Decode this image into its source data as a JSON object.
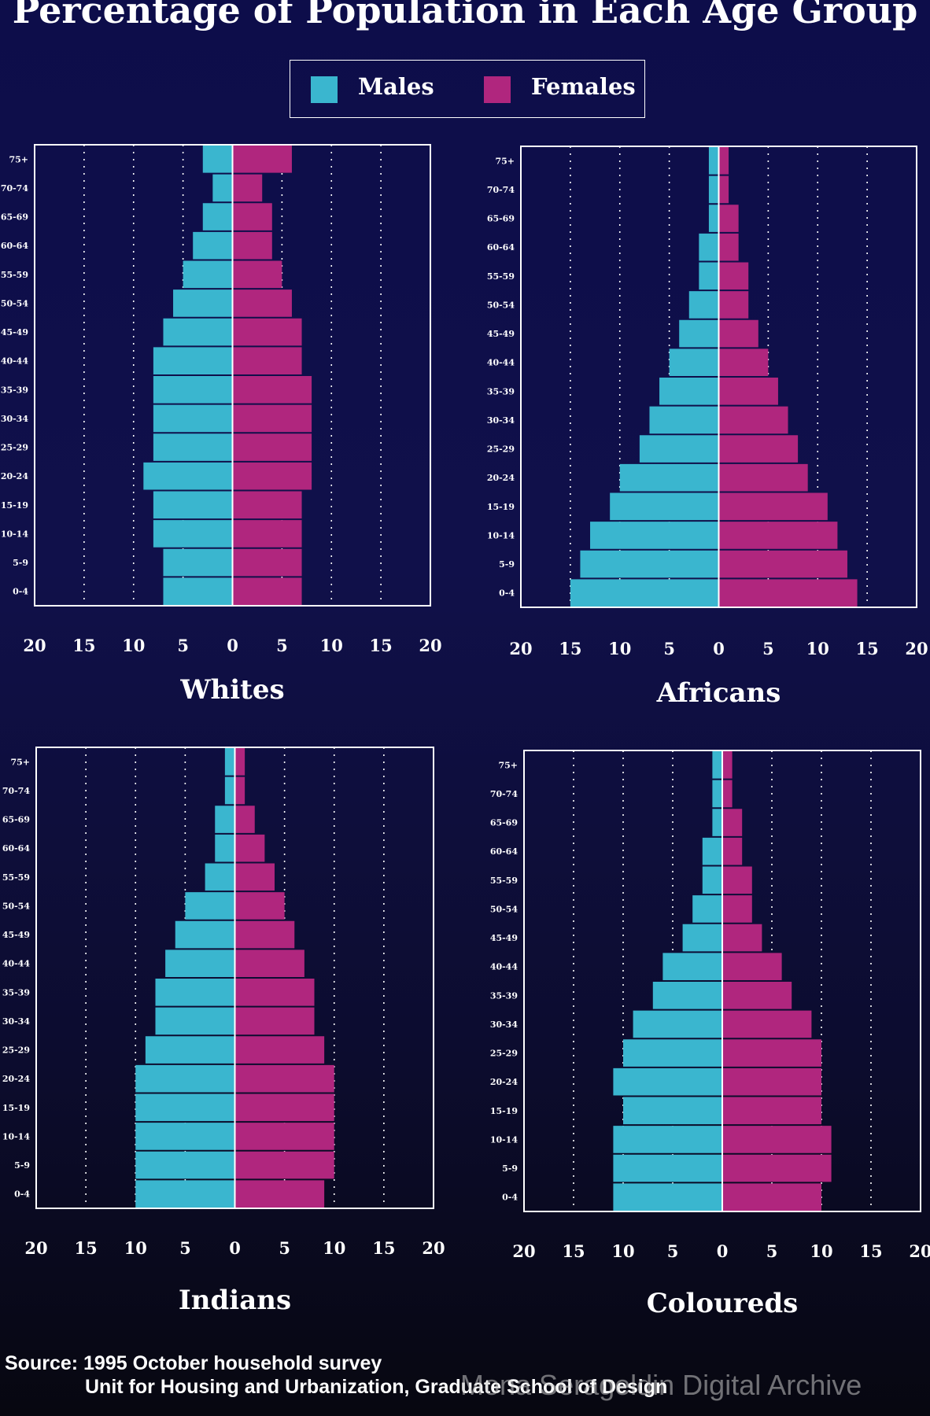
{
  "title": "Percentage of Population in Each Age Group",
  "legend": [
    {
      "label": "Males",
      "color": "#3ab6cf"
    },
    {
      "label": "Females",
      "color": "#b0267e"
    }
  ],
  "source": {
    "line1": "Source: 1995 October household survey",
    "line2": "Unit for Housing and Urbanization, Graduate School of Design"
  },
  "watermark": "Mona Serageldin Digital Archive",
  "chart_data": [
    {
      "type": "bar",
      "orientation": "population-pyramid",
      "title": "Whites",
      "categories": [
        "75+",
        "70-74",
        "65-69",
        "60-64",
        "55-59",
        "50-54",
        "45-49",
        "40-44",
        "35-39",
        "30-34",
        "25-29",
        "20-24",
        "15-19",
        "10-14",
        "5-9",
        "0-4"
      ],
      "xticks": [
        "20",
        "15",
        "10",
        "5",
        "0",
        "5",
        "10",
        "15",
        "20"
      ],
      "xlim": [
        -20,
        20
      ],
      "grid": true,
      "series": [
        {
          "name": "Males",
          "values": [
            3,
            2,
            3,
            4,
            5,
            6,
            7,
            8,
            8,
            8,
            8,
            9,
            8,
            8,
            7,
            7
          ]
        },
        {
          "name": "Females",
          "values": [
            6,
            3,
            4,
            4,
            5,
            6,
            7,
            7,
            8,
            8,
            8,
            8,
            7,
            7,
            7,
            7
          ]
        }
      ]
    },
    {
      "type": "bar",
      "orientation": "population-pyramid",
      "title": "Africans",
      "categories": [
        "75+",
        "70-74",
        "65-69",
        "60-64",
        "55-59",
        "50-54",
        "45-49",
        "40-44",
        "35-39",
        "30-34",
        "25-29",
        "20-24",
        "15-19",
        "10-14",
        "5-9",
        "0-4"
      ],
      "xticks": [
        "20",
        "15",
        "10",
        "5",
        "0",
        "5",
        "10",
        "15",
        "20"
      ],
      "xlim": [
        -20,
        20
      ],
      "grid": true,
      "series": [
        {
          "name": "Males",
          "values": [
            1,
            1,
            1,
            2,
            2,
            3,
            4,
            5,
            6,
            7,
            8,
            10,
            11,
            13,
            14,
            15
          ]
        },
        {
          "name": "Females",
          "values": [
            1,
            1,
            2,
            2,
            3,
            3,
            4,
            5,
            6,
            7,
            8,
            9,
            11,
            12,
            13,
            14
          ]
        }
      ]
    },
    {
      "type": "bar",
      "orientation": "population-pyramid",
      "title": "Indians",
      "categories": [
        "75+",
        "70-74",
        "65-69",
        "60-64",
        "55-59",
        "50-54",
        "45-49",
        "40-44",
        "35-39",
        "30-34",
        "25-29",
        "20-24",
        "15-19",
        "10-14",
        "5-9",
        "0-4"
      ],
      "xticks": [
        "20",
        "15",
        "10",
        "5",
        "0",
        "5",
        "10",
        "15",
        "20"
      ],
      "xlim": [
        -20,
        20
      ],
      "grid": true,
      "series": [
        {
          "name": "Males",
          "values": [
            1,
            1,
            2,
            2,
            3,
            5,
            6,
            7,
            8,
            8,
            9,
            10,
            10,
            10,
            10,
            10
          ]
        },
        {
          "name": "Females",
          "values": [
            1,
            1,
            2,
            3,
            4,
            5,
            6,
            7,
            8,
            8,
            9,
            10,
            10,
            10,
            10,
            9
          ]
        }
      ]
    },
    {
      "type": "bar",
      "orientation": "population-pyramid",
      "title": "Coloureds",
      "categories": [
        "75+",
        "70-74",
        "65-69",
        "60-64",
        "55-59",
        "50-54",
        "45-49",
        "40-44",
        "35-39",
        "30-34",
        "25-29",
        "20-24",
        "15-19",
        "10-14",
        "5-9",
        "0-4"
      ],
      "xticks": [
        "20",
        "15",
        "10",
        "5",
        "0",
        "5",
        "10",
        "15",
        "20"
      ],
      "xlim": [
        -20,
        20
      ],
      "grid": true,
      "series": [
        {
          "name": "Males",
          "values": [
            1,
            1,
            1,
            2,
            2,
            3,
            4,
            6,
            7,
            9,
            10,
            11,
            10,
            11,
            11,
            11
          ]
        },
        {
          "name": "Females",
          "values": [
            1,
            1,
            2,
            2,
            3,
            3,
            4,
            6,
            7,
            9,
            10,
            10,
            10,
            11,
            11,
            10
          ]
        }
      ]
    }
  ]
}
